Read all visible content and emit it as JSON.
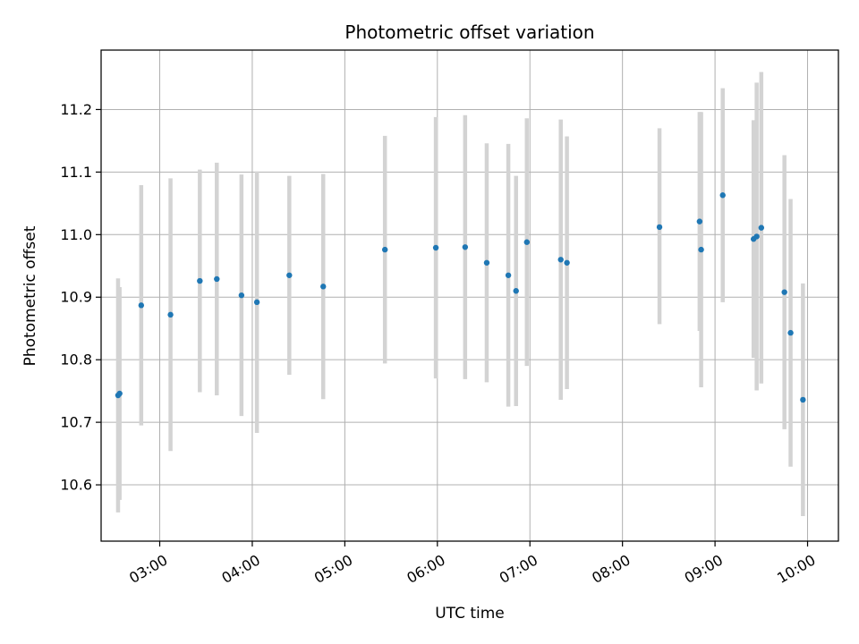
{
  "chart_data": {
    "type": "scatter",
    "title": "Photometric offset variation",
    "xlabel": "UTC time",
    "ylabel": "Photometric offset",
    "x_unit": "UTC time (HH:MM)",
    "xlim": [
      "02:22",
      "10:20"
    ],
    "ylim": [
      10.51,
      11.295
    ],
    "x_ticks": [
      "03:00",
      "04:00",
      "05:00",
      "06:00",
      "07:00",
      "08:00",
      "09:00",
      "10:00"
    ],
    "y_ticks": [
      "10.6",
      "10.7",
      "10.8",
      "10.9",
      "11.0",
      "11.1",
      "11.2"
    ],
    "grid": true,
    "legend": "none",
    "x_tick_rotation_deg": 30,
    "colors": {
      "point": "#1f77b4",
      "errorbar": "#d3d3d3",
      "grid": "#b0b0b0"
    },
    "points": [
      {
        "x": "02:33",
        "y": 10.743,
        "lo": 10.556,
        "hi": 10.93
      },
      {
        "x": "02:34",
        "y": 10.746,
        "lo": 10.576,
        "hi": 10.916
      },
      {
        "x": "02:48",
        "y": 10.887,
        "lo": 10.695,
        "hi": 11.079
      },
      {
        "x": "03:07",
        "y": 10.872,
        "lo": 10.654,
        "hi": 11.09
      },
      {
        "x": "03:26",
        "y": 10.926,
        "lo": 10.748,
        "hi": 11.104
      },
      {
        "x": "03:37",
        "y": 10.929,
        "lo": 10.743,
        "hi": 11.115
      },
      {
        "x": "03:53",
        "y": 10.903,
        "lo": 10.71,
        "hi": 11.096
      },
      {
        "x": "04:03",
        "y": 10.892,
        "lo": 10.683,
        "hi": 11.101
      },
      {
        "x": "04:24",
        "y": 10.935,
        "lo": 10.776,
        "hi": 11.094
      },
      {
        "x": "04:46",
        "y": 10.917,
        "lo": 10.737,
        "hi": 11.097
      },
      {
        "x": "05:26",
        "y": 10.976,
        "lo": 10.794,
        "hi": 11.158
      },
      {
        "x": "05:59",
        "y": 10.979,
        "lo": 10.77,
        "hi": 11.188
      },
      {
        "x": "06:18",
        "y": 10.98,
        "lo": 10.769,
        "hi": 11.191
      },
      {
        "x": "06:32",
        "y": 10.955,
        "lo": 10.764,
        "hi": 11.146
      },
      {
        "x": "06:46",
        "y": 10.935,
        "lo": 10.725,
        "hi": 11.145
      },
      {
        "x": "06:51",
        "y": 10.91,
        "lo": 10.726,
        "hi": 11.094
      },
      {
        "x": "06:58",
        "y": 10.988,
        "lo": 10.79,
        "hi": 11.186
      },
      {
        "x": "07:20",
        "y": 10.96,
        "lo": 10.736,
        "hi": 11.184
      },
      {
        "x": "07:24",
        "y": 10.955,
        "lo": 10.753,
        "hi": 11.157
      },
      {
        "x": "08:24",
        "y": 11.012,
        "lo": 10.857,
        "hi": 11.17
      },
      {
        "x": "08:50",
        "y": 11.021,
        "lo": 10.846,
        "hi": 11.196
      },
      {
        "x": "08:51",
        "y": 10.976,
        "lo": 10.756,
        "hi": 11.196
      },
      {
        "x": "09:05",
        "y": 11.063,
        "lo": 10.892,
        "hi": 11.234
      },
      {
        "x": "09:25",
        "y": 10.993,
        "lo": 10.803,
        "hi": 11.183
      },
      {
        "x": "09:27",
        "y": 10.997,
        "lo": 10.751,
        "hi": 11.243
      },
      {
        "x": "09:30",
        "y": 11.011,
        "lo": 10.762,
        "hi": 11.26
      },
      {
        "x": "09:45",
        "y": 10.908,
        "lo": 10.689,
        "hi": 11.127
      },
      {
        "x": "09:49",
        "y": 10.843,
        "lo": 10.629,
        "hi": 11.057
      },
      {
        "x": "09:57",
        "y": 10.736,
        "lo": 10.55,
        "hi": 10.922
      }
    ]
  }
}
